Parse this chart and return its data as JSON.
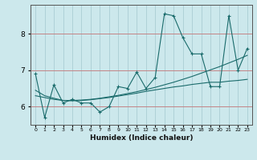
{
  "title": "",
  "xlabel": "Humidex (Indice chaleur)",
  "ylabel": "",
  "bg_color": "#cce8ec",
  "line_color": "#1a6b6b",
  "grid_color": "#aacdd4",
  "x_values": [
    0,
    1,
    2,
    3,
    4,
    5,
    6,
    7,
    8,
    9,
    10,
    11,
    12,
    13,
    14,
    15,
    16,
    17,
    18,
    19,
    20,
    21,
    22,
    23
  ],
  "y_main": [
    6.9,
    5.7,
    6.6,
    6.1,
    6.2,
    6.1,
    6.1,
    5.85,
    6.0,
    6.55,
    6.5,
    6.95,
    6.5,
    6.8,
    8.55,
    8.5,
    7.9,
    7.45,
    7.45,
    6.55,
    6.55,
    8.5,
    7.0,
    7.6
  ],
  "y_trend1": [
    6.45,
    6.3,
    6.23,
    6.17,
    6.17,
    6.18,
    6.2,
    6.23,
    6.27,
    6.31,
    6.36,
    6.41,
    6.47,
    6.53,
    6.6,
    6.67,
    6.75,
    6.83,
    6.92,
    7.01,
    7.1,
    7.2,
    7.3,
    7.41
  ],
  "y_trend2": [
    6.3,
    6.25,
    6.2,
    6.17,
    6.16,
    6.17,
    6.19,
    6.22,
    6.25,
    6.29,
    6.33,
    6.37,
    6.42,
    6.46,
    6.5,
    6.54,
    6.57,
    6.61,
    6.64,
    6.67,
    6.67,
    6.7,
    6.72,
    6.75
  ],
  "ylim": [
    5.5,
    8.8
  ],
  "yticks": [
    6,
    7,
    8
  ],
  "xlim": [
    -0.5,
    23.5
  ]
}
